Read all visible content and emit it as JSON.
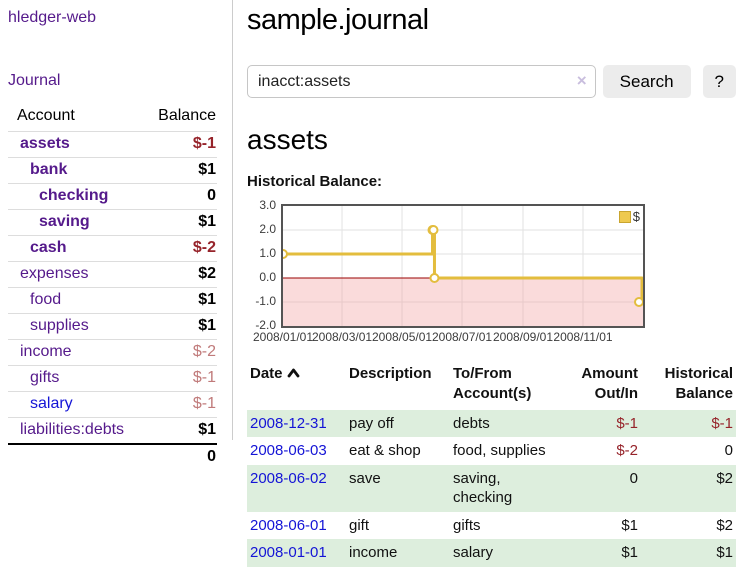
{
  "app": {
    "title": "hledger-web"
  },
  "sidebar": {
    "journal_link": "Journal",
    "accounts": {
      "account_header": "Account",
      "balance_header": "Balance",
      "rows": [
        {
          "name": "assets",
          "level": 1,
          "bold": true,
          "balance": "$-1",
          "neg": "strong"
        },
        {
          "name": "bank",
          "level": 2,
          "bold": true,
          "balance": "$1",
          "neg": "none"
        },
        {
          "name": "checking",
          "level": 3,
          "bold": true,
          "balance": "0",
          "neg": "none"
        },
        {
          "name": "saving",
          "level": 3,
          "bold": true,
          "balance": "$1",
          "neg": "none"
        },
        {
          "name": "cash",
          "level": 2,
          "bold": true,
          "balance": "$-2",
          "neg": "strong"
        },
        {
          "name": "expenses",
          "level": 1,
          "bold": false,
          "balance": "$2",
          "neg": "none"
        },
        {
          "name": "food",
          "level": 2,
          "bold": false,
          "balance": "$1",
          "neg": "none"
        },
        {
          "name": "supplies",
          "level": 2,
          "bold": false,
          "balance": "$1",
          "neg": "none"
        },
        {
          "name": "income",
          "level": 1,
          "bold": false,
          "balance": "$-2",
          "neg": "weak"
        },
        {
          "name": "gifts",
          "level": 2,
          "bold": false,
          "balance": "$-1",
          "neg": "weak"
        },
        {
          "name": "salary",
          "level": 2,
          "bold": false,
          "balance": "$-1",
          "neg": "weak",
          "unvisited": true
        },
        {
          "name": "liabilities:debts",
          "level": 1,
          "bold": false,
          "balance": "$1",
          "neg": "none"
        }
      ],
      "total": "0"
    }
  },
  "header": {
    "title": "sample.journal"
  },
  "search": {
    "value": "inacct:assets",
    "clear_icon": "×",
    "button_label": "Search",
    "help_label": "?"
  },
  "main": {
    "account_title": "assets",
    "chart_label": "Historical Balance:"
  },
  "chart_data": {
    "type": "line",
    "steps": true,
    "title": "Historical Balance",
    "series": [
      {
        "name": "$",
        "x_dates": [
          "2008-01-01",
          "2008-06-01",
          "2008-06-02",
          "2008-06-03",
          "2008-12-31"
        ],
        "x_days": [
          0,
          152,
          153,
          154,
          365
        ],
        "values": [
          1,
          2,
          2,
          0,
          -1
        ]
      }
    ],
    "xlim_days": [
      0,
      366
    ],
    "ylim": [
      -2,
      3
    ],
    "yticks": [
      {
        "v": 3,
        "label": "3.0"
      },
      {
        "v": 2,
        "label": "2.0"
      },
      {
        "v": 1,
        "label": "1.0"
      },
      {
        "v": 0,
        "label": "0.0"
      },
      {
        "v": -1,
        "label": "-1.0"
      },
      {
        "v": -2,
        "label": "-2.0"
      }
    ],
    "xticks": [
      {
        "d": 0,
        "label": "2008/01/01"
      },
      {
        "d": 60,
        "label": "2008/03/01"
      },
      {
        "d": 121,
        "label": "2008/05/01"
      },
      {
        "d": 182,
        "label": "2008/07/01"
      },
      {
        "d": 244,
        "label": "2008/09/01"
      },
      {
        "d": 305,
        "label": "2008/11/01"
      }
    ],
    "legend": {
      "label": "$",
      "position": "top-right"
    },
    "grid": true,
    "colors": {
      "line": "#e3bd3e",
      "marker_fill": "#ffffff",
      "negative_region": "#f2a0a0",
      "zero_line": "#9a0000",
      "grid": "#e2e2e2",
      "border": "#545454",
      "accent_purple": "#551a8b",
      "link_blue": "#1414d6",
      "neg_strong": "#96232a",
      "neg_weak": "#c07a7a",
      "stripe_green": "#ddeedd"
    }
  },
  "register": {
    "headers": {
      "date": "Date",
      "description": "Description",
      "tofrom_line1": "To/From",
      "tofrom_line2": "Account(s)",
      "amount_line1": "Amount",
      "amount_line2": "Out/In",
      "balance_line1": "Historical",
      "balance_line2": "Balance"
    },
    "rows": [
      {
        "date": "2008-12-31",
        "description": "pay off",
        "accounts": "debts",
        "amount": "$-1",
        "balance": "$-1"
      },
      {
        "date": "2008-06-03",
        "description": "eat & shop",
        "accounts": "food, supplies",
        "amount": "$-2",
        "balance": "0"
      },
      {
        "date": "2008-06-02",
        "description": "save",
        "accounts": "saving, checking",
        "amount": "0",
        "balance": "$2"
      },
      {
        "date": "2008-06-01",
        "description": "gift",
        "accounts": "gifts",
        "amount": "$1",
        "balance": "$2"
      },
      {
        "date": "2008-01-01",
        "description": "income",
        "accounts": "salary",
        "amount": "$1",
        "balance": "$1"
      }
    ]
  }
}
